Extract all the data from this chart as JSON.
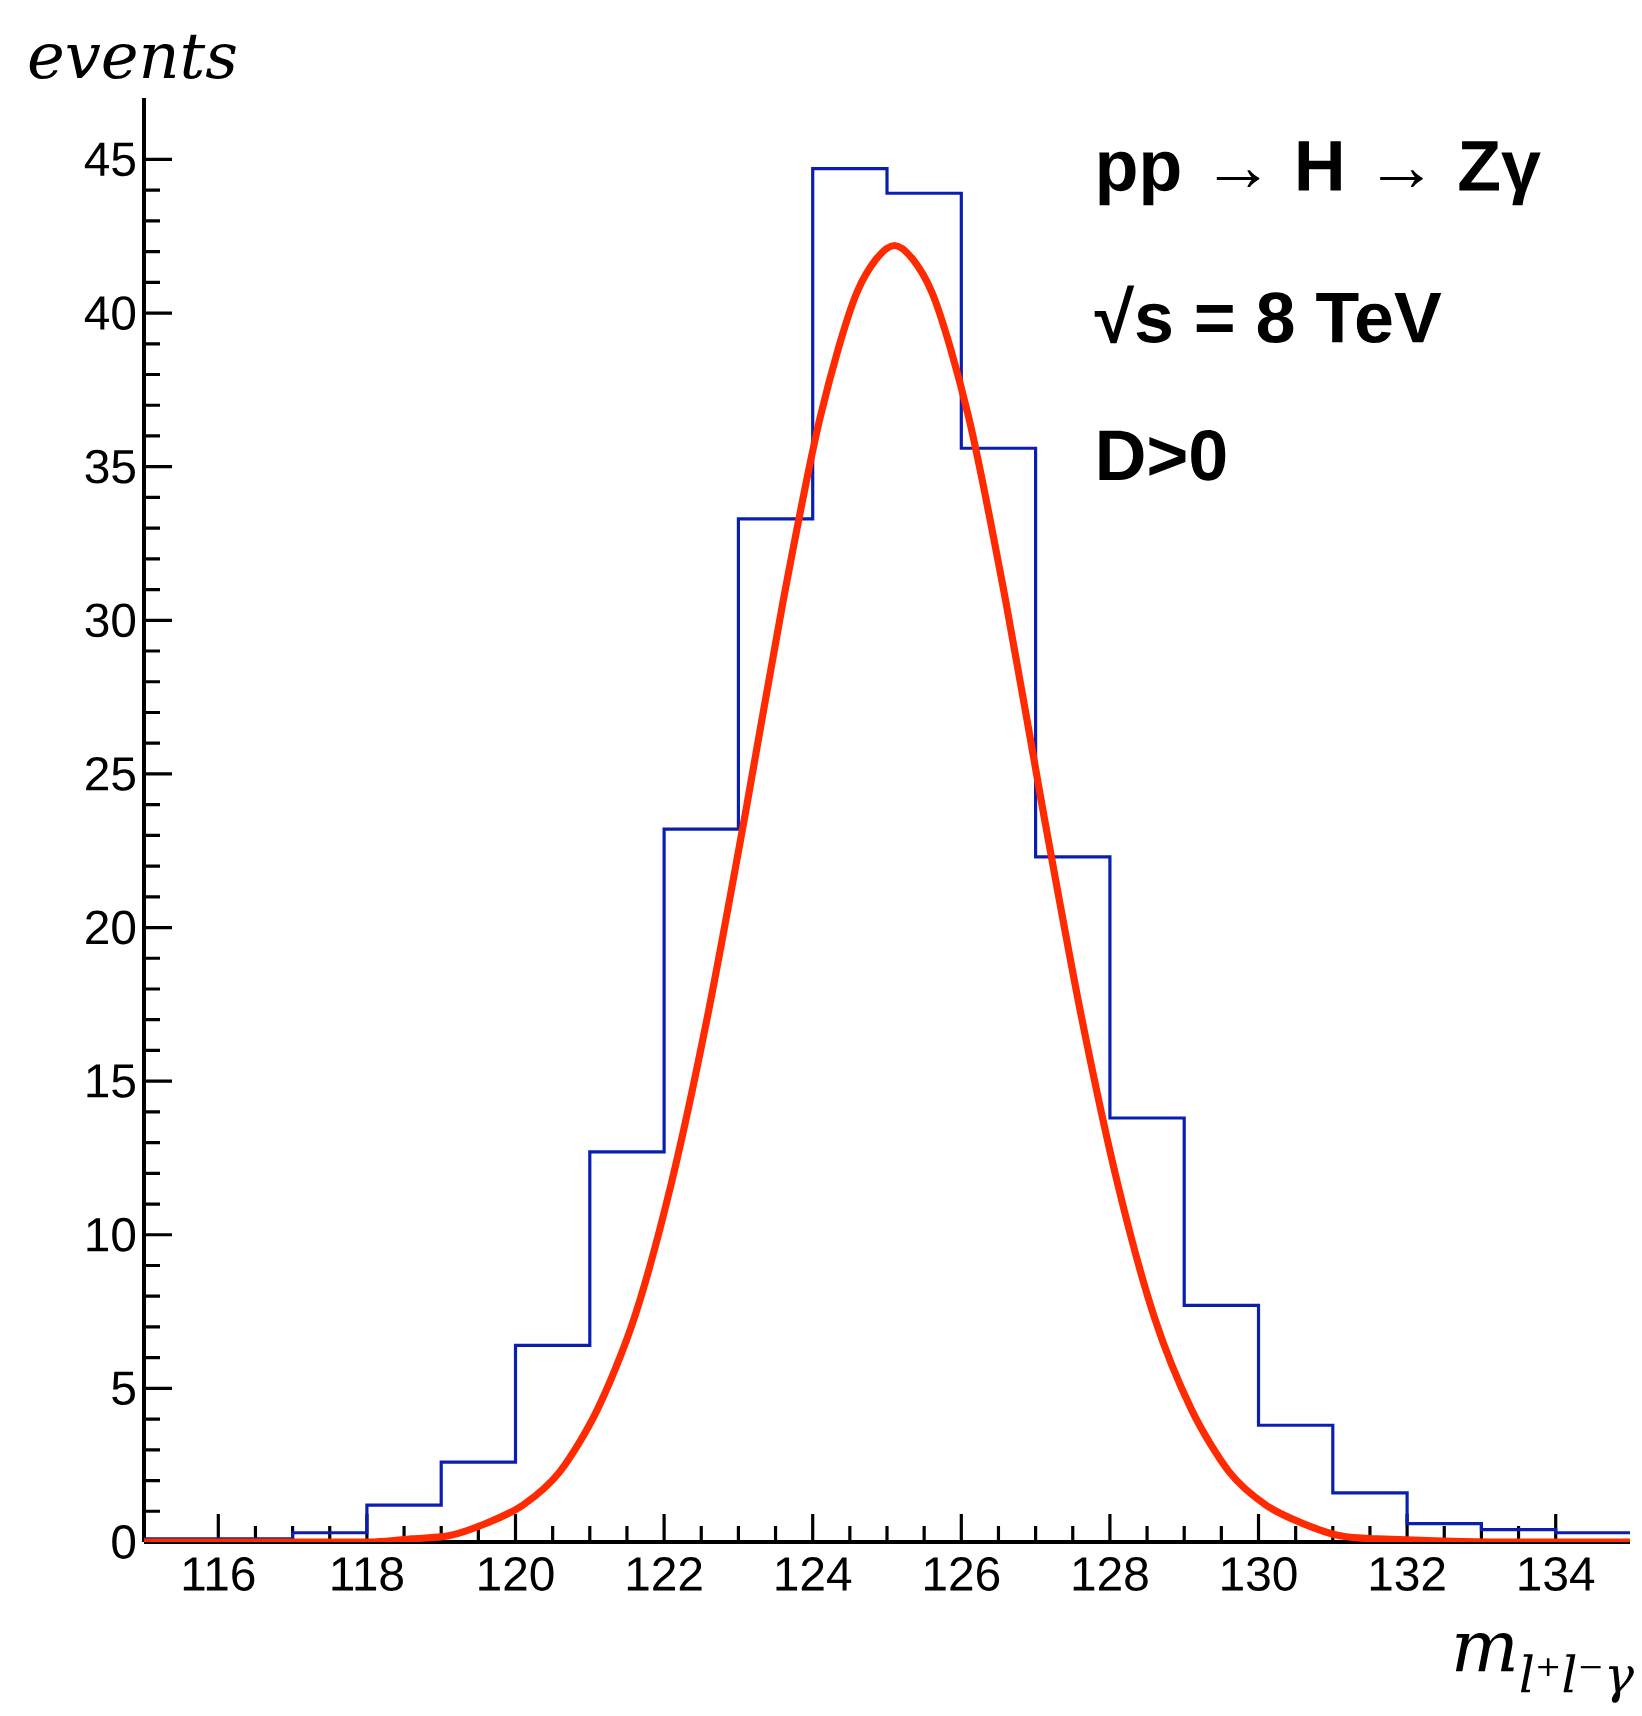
{
  "chart_data": {
    "type": "histogram",
    "xlabel": "m$_{l⁺l⁻γ}$",
    "ylabel": "events",
    "annotations": [
      "pp → H → Zγ",
      "√s = 8 TeV",
      "D>0"
    ],
    "xlim": [
      115,
      135
    ],
    "ylim": [
      0,
      47
    ],
    "xticks": [
      116,
      118,
      120,
      122,
      124,
      126,
      128,
      130,
      132,
      134
    ],
    "yticks": [
      0,
      5,
      10,
      15,
      20,
      25,
      30,
      35,
      40,
      45
    ],
    "series": [
      {
        "color": "#0a1fb0",
        "bins": [
          115,
          116,
          117,
          118,
          119,
          120,
          121,
          122,
          123,
          124,
          125,
          126,
          127,
          128,
          129,
          130,
          131,
          132,
          133,
          134,
          135
        ],
        "values": [
          0.1,
          0.1,
          0.3,
          1.2,
          2.6,
          6.4,
          12.7,
          23.2,
          33.3,
          44.7,
          43.9,
          35.6,
          22.3,
          13.8,
          7.7,
          3.8,
          1.6,
          0.6,
          0.4,
          0.3
        ]
      },
      {
        "type": "line",
        "color": "#ff2a00",
        "x": [
          115,
          117.1,
          118.1,
          118.6,
          119.1,
          119.6,
          120.1,
          120.6,
          121.1,
          121.6,
          122.1,
          122.6,
          123.1,
          123.6,
          124.1,
          124.6,
          125.1,
          125.6,
          126.1,
          126.6,
          127.1,
          127.6,
          128.1,
          128.6,
          129.1,
          129.6,
          130.1,
          130.6,
          131.1,
          131.6,
          133.1,
          135
        ],
        "values": [
          0,
          0,
          0,
          0.1,
          0.2,
          0.6,
          1.2,
          2.3,
          4.3,
          7.3,
          11.7,
          17.3,
          23.8,
          30.6,
          36.6,
          40.7,
          42.2,
          40.7,
          36.6,
          30.6,
          23.8,
          17.3,
          11.7,
          7.3,
          4.3,
          2.3,
          1.2,
          0.6,
          0.2,
          0.1,
          0,
          0
        ]
      }
    ]
  }
}
